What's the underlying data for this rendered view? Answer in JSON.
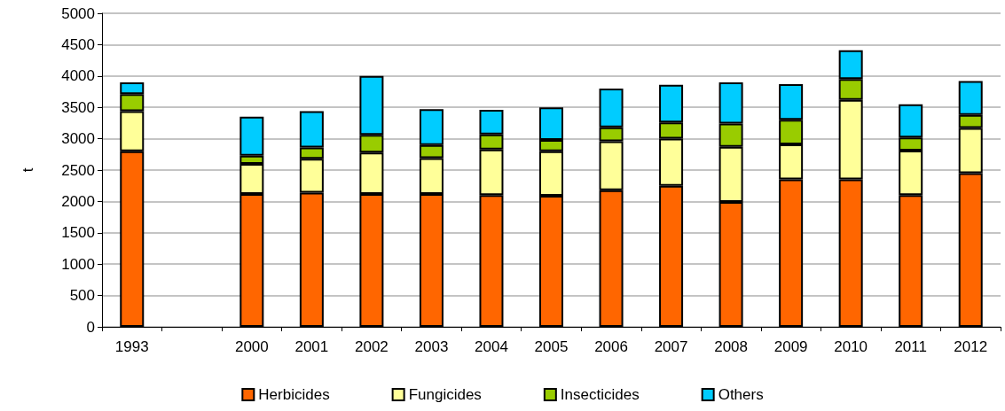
{
  "chart_data": {
    "type": "bar",
    "stacked": true,
    "ylabel": "t",
    "categories": [
      "1993",
      null,
      "2000",
      "2001",
      "2002",
      "2003",
      "2004",
      "2005",
      "2006",
      "2007",
      "2008",
      "2009",
      "2010",
      "2011",
      "2012"
    ],
    "series": [
      {
        "name": "Herbicides",
        "color": "#ff6600",
        "values": [
          2800,
          null,
          2120,
          2140,
          2120,
          2120,
          2100,
          2090,
          2180,
          2250,
          1990,
          2350,
          2350,
          2100,
          2450
        ]
      },
      {
        "name": "Fungicides",
        "color": "#ffff99",
        "values": [
          640,
          null,
          480,
          540,
          660,
          570,
          730,
          710,
          780,
          750,
          880,
          560,
          1270,
          710,
          720
        ]
      },
      {
        "name": "Insecticides",
        "color": "#99cc00",
        "values": [
          270,
          null,
          130,
          180,
          280,
          210,
          240,
          180,
          220,
          260,
          370,
          390,
          330,
          210,
          210
        ]
      },
      {
        "name": "Others",
        "color": "#00ccff",
        "values": [
          190,
          null,
          620,
          580,
          940,
          570,
          390,
          520,
          620,
          600,
          660,
          570,
          460,
          530,
          540
        ]
      }
    ],
    "ylim": [
      0,
      5000
    ],
    "yticks": [
      0,
      500,
      1000,
      1500,
      2000,
      2500,
      3000,
      3500,
      4000,
      4500,
      5000
    ],
    "grid": "y",
    "legend": "bottom"
  }
}
